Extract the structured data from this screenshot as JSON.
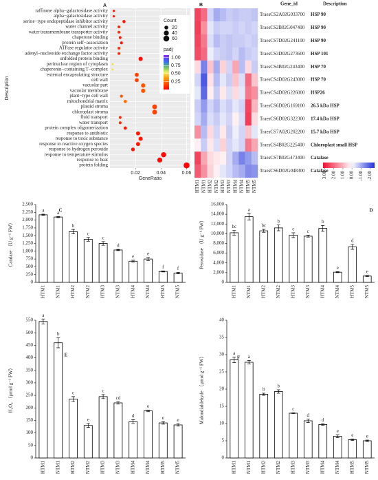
{
  "chart_data": [
    {
      "type": "dot",
      "panel": "A",
      "categories": [
        "raffinose alpha−galactosidase activity",
        "alpha−galactosidase activity",
        "serine−type endopeptidase inhibitor activity",
        "water channel activity",
        "water transmembrane transporter activity",
        "chaperone binding",
        "protein self−association",
        "ATPase regulator activity",
        "adenyl−nucleotide exchange factor activity",
        "unfolded protein binding",
        "perinuclear region of cytoplasm",
        "chaperonin−containing T−complex",
        "external encapsulating structure",
        "cell wall",
        "vacuolar part",
        "vacuolar membrane",
        "plant−type cell wall",
        "mitochondrial matrix",
        "plastid stroma",
        "chloroplast stroma",
        "fluid transport",
        "water transport",
        "protein complex oligomerization",
        "response to antibiotic",
        "response to toxic substance",
        "response to reactive oxygen species",
        "response to hydrogen peroxide",
        "response to temperature stimulus",
        "response to heat",
        "protein folding"
      ],
      "x": [
        0.003,
        0.003,
        0.011,
        0.007,
        0.007,
        0.008,
        0.009,
        0.007,
        0.007,
        0.024,
        0.002,
        0.002,
        0.021,
        0.021,
        0.026,
        0.026,
        0.009,
        0.012,
        0.035,
        0.035,
        0.008,
        0.008,
        0.012,
        0.022,
        0.024,
        0.022,
        0.018,
        0.042,
        0.039,
        0.06
      ],
      "counts": [
        3,
        3,
        11,
        7,
        7,
        8,
        9,
        7,
        7,
        24,
        2,
        2,
        21,
        21,
        26,
        26,
        9,
        12,
        35,
        35,
        8,
        8,
        12,
        22,
        24,
        22,
        18,
        42,
        39,
        60
      ],
      "padj": [
        0.05,
        0.05,
        0.05,
        0.1,
        0.1,
        0.05,
        0.05,
        0.1,
        0.1,
        0.02,
        0.5,
        0.5,
        0.15,
        0.15,
        0.2,
        0.2,
        0.2,
        0.25,
        0.15,
        0.15,
        0.1,
        0.1,
        0.05,
        0.05,
        0.05,
        0.05,
        0.05,
        0.02,
        0.02,
        0.01
      ],
      "xlim": [
        0,
        0.063
      ],
      "xticks": [
        0.02,
        0.04,
        0.06
      ],
      "xlabel": "GeneRatio",
      "ylabel": "Description",
      "grid": true,
      "size_legend": {
        "title": "Count",
        "values": [
          20,
          40,
          60
        ]
      },
      "color_legend": {
        "title": "padj",
        "lim": [
          0,
          1.08
        ],
        "ticks": [
          0.25,
          {
            "value": 0.5,
            "label": "0.50"
          },
          0.75,
          {
            "value": 1,
            "label": "1.00"
          }
        ]
      }
    },
    {
      "type": "heatmap",
      "panel": "B",
      "header": [
        "Gene_id",
        "Description"
      ],
      "columns": [
        "HTM1",
        "NTM1",
        "HTM2",
        "NTM2",
        "HTM3",
        "NTM3",
        "HTM4",
        "NTM4",
        "HTM5",
        "NTM5"
      ],
      "gene_ids": [
        "TraesCS2A02G033700",
        "TraesCS2B02G047400",
        "TraesCS7D02G241100",
        "TraesCS3D02G273600",
        "TraesCS4B02G243400",
        "TraesCS4D02G243000",
        "TraesCS4D02G226000",
        "TraesCS6D02G169100",
        "TraesCS6D02G322300",
        "TraesCS7A02G202200",
        "TraesCS4B02G225400",
        "TraesCS7B02G473400",
        "TraesCS6D02G048300"
      ],
      "descriptions": [
        "HSP 90",
        "HSP 90",
        "HSP 90",
        "HSP 101",
        "HSP 70",
        "HSP 70",
        "HSP26",
        "26.5 kDa HSP",
        "17.4 kDa HSP",
        "15.7 kDa HSP",
        "Chloroplast small HSP",
        "Catalase",
        "Catalase"
      ],
      "values": [
        [
          2.5,
          2.0,
          -0.5,
          -1.0,
          -0.8,
          -0.6,
          -0.7,
          -0.6,
          -0.6,
          -0.7
        ],
        [
          2.6,
          1.5,
          -0.3,
          -0.6,
          -0.5,
          -0.5,
          -0.6,
          -0.5,
          -0.6,
          -0.5
        ],
        [
          2.5,
          1.8,
          -0.4,
          -0.8,
          -0.6,
          -0.7,
          -0.6,
          -0.6,
          -0.5,
          -0.6
        ],
        [
          2.4,
          2.0,
          -0.2,
          -0.5,
          -0.6,
          -0.7,
          -0.5,
          -0.8,
          -0.6,
          -0.5
        ],
        [
          0.5,
          -1.5,
          0.8,
          -1.0,
          0.6,
          -0.5,
          1.2,
          -0.8,
          0.5,
          -0.6
        ],
        [
          -0.5,
          -2.0,
          0.4,
          -0.8,
          -0.3,
          -0.6,
          0.8,
          -0.4,
          2.0,
          0.8
        ],
        [
          -0.3,
          -1.8,
          0.2,
          -0.6,
          0.3,
          -0.4,
          0.5,
          -0.3,
          1.8,
          1.5
        ],
        [
          -0.6,
          -1.2,
          -0.5,
          -0.8,
          -0.4,
          -0.6,
          -0.3,
          -0.5,
          2.5,
          1.0
        ],
        [
          -0.5,
          -1.0,
          -0.4,
          -0.6,
          -0.3,
          -0.5,
          0.2,
          -0.4,
          2.6,
          0.5
        ],
        [
          1.5,
          -0.8,
          0.5,
          -0.5,
          0.3,
          -0.6,
          -0.2,
          -0.5,
          0.8,
          -0.3
        ],
        [
          0.2,
          -0.6,
          0.3,
          -0.4,
          0.6,
          -0.5,
          -0.3,
          -0.5,
          1.8,
          1.2
        ],
        [
          2.5,
          1.2,
          0.5,
          0.3,
          0.2,
          -0.5,
          -1.0,
          -1.5,
          -1.2,
          -0.8
        ],
        [
          2.2,
          1.5,
          0.6,
          0.2,
          -0.3,
          -0.5,
          -0.8,
          -1.0,
          -1.4,
          -1.3
        ]
      ],
      "clim": [
        -2.5,
        3.2
      ],
      "legend_ticks": [
        {
          "value": 3,
          "label": "3.00"
        },
        {
          "value": 2,
          "label": "2.00"
        },
        {
          "value": 1,
          "label": "1.00"
        },
        {
          "value": 0,
          "label": "0.00"
        },
        {
          "value": -1,
          "label": "-1.00"
        },
        {
          "value": -2,
          "label": "-2.00"
        }
      ]
    },
    {
      "type": "bar",
      "panel": "C",
      "ylabel": "Catalase （U g⁻¹ FW）",
      "categories": [
        "HTM1",
        "NTM1",
        "HTM2",
        "NTM2",
        "HTM3",
        "NTM3",
        "HTM4",
        "NTM4",
        "HTM5",
        "NTM5"
      ],
      "values": [
        2170,
        2100,
        1630,
        1380,
        1250,
        1040,
        680,
        750,
        350,
        300
      ],
      "errors": [
        20,
        20,
        70,
        60,
        60,
        20,
        30,
        50,
        15,
        20
      ],
      "letters": [
        "a",
        "a",
        "b",
        "c",
        "c",
        "d",
        "e",
        "e",
        "f",
        "f"
      ],
      "ylim": [
        0,
        2500
      ],
      "yticks": [
        0,
        250,
        500,
        750,
        {
          "value": 1000,
          "label": "1,000"
        },
        {
          "value": 1250,
          "label": "1,250"
        },
        {
          "value": 1500,
          "label": "1,500"
        },
        {
          "value": 1750,
          "label": "1,750"
        },
        {
          "value": 2000,
          "label": "2,000"
        },
        {
          "value": 2250,
          "label": "2,250"
        },
        {
          "value": 2500,
          "label": "2,500"
        }
      ]
    },
    {
      "type": "bar",
      "panel": "D",
      "ylabel": "Peroxidase （U g⁻¹ FW）",
      "categories": [
        "HTM1",
        "NTM1",
        "HTM2",
        "NTM2",
        "HTM3",
        "NTM3",
        "HTM4",
        "NTM4",
        "HTM5",
        "NTM5"
      ],
      "values": [
        10200,
        13500,
        10600,
        11200,
        9700,
        9500,
        11100,
        2100,
        7300,
        1300
      ],
      "errors": [
        500,
        700,
        300,
        600,
        500,
        200,
        600,
        100,
        500,
        100
      ],
      "letters": [
        "bc",
        "a",
        "bc",
        "b",
        "c",
        "c",
        "b",
        "e",
        "d",
        "e"
      ],
      "ylim": [
        0,
        16000
      ],
      "yticks": [
        0,
        {
          "value": 2000,
          "label": "2,000"
        },
        {
          "value": 4000,
          "label": "4,000"
        },
        {
          "value": 6000,
          "label": "6,000"
        },
        {
          "value": 8000,
          "label": "8,000"
        },
        {
          "value": 10000,
          "label": "10,000"
        },
        {
          "value": 12000,
          "label": "12,000"
        },
        {
          "value": 14000,
          "label": "14,000"
        },
        {
          "value": 16000,
          "label": "16,000"
        }
      ]
    },
    {
      "type": "bar",
      "panel": "E",
      "ylabel": "H₂O₂ （μmol g⁻¹ FW）",
      "categories": [
        "HTM1",
        "NTM1",
        "HTM2",
        "NTM2",
        "HTM3",
        "NTM3",
        "HTM4",
        "NTM4",
        "HTM5",
        "NTM5"
      ],
      "values": [
        545,
        460,
        235,
        130,
        245,
        220,
        145,
        188,
        140,
        132
      ],
      "errors": [
        10,
        20,
        10,
        8,
        8,
        5,
        8,
        3,
        5,
        5
      ],
      "letters": [
        "a",
        "b",
        "c",
        "e",
        "c",
        "cd",
        "d",
        "e",
        "e",
        "e"
      ],
      "ylim": [
        0,
        550
      ],
      "yticks": [
        0,
        50,
        100,
        150,
        200,
        250,
        300,
        350,
        400,
        450,
        500,
        550
      ]
    },
    {
      "type": "bar",
      "panel": "F",
      "ylabel": "Malondialdehyde （μmol g⁻¹ FW）",
      "categories": [
        "HTM1",
        "NTM1",
        "HTM2",
        "NTM2",
        "HTM3",
        "NTM3",
        "HTM4",
        "NTM4",
        "HTM5",
        "NTM5"
      ],
      "values": [
        28.5,
        27.8,
        18.5,
        19.3,
        13.0,
        10.8,
        9.7,
        6.3,
        5.3,
        5.0
      ],
      "errors": [
        0.8,
        0.5,
        0.3,
        0.5,
        0.1,
        0.5,
        0.2,
        0.4,
        0.2,
        0.2
      ],
      "letters": [
        "a",
        "a",
        "b",
        "b",
        "c",
        "d",
        "d",
        "e",
        "e",
        "e"
      ],
      "ylim": [
        0,
        40
      ],
      "yticks": [
        0,
        5,
        10,
        15,
        20,
        25,
        30,
        35,
        40
      ]
    }
  ]
}
